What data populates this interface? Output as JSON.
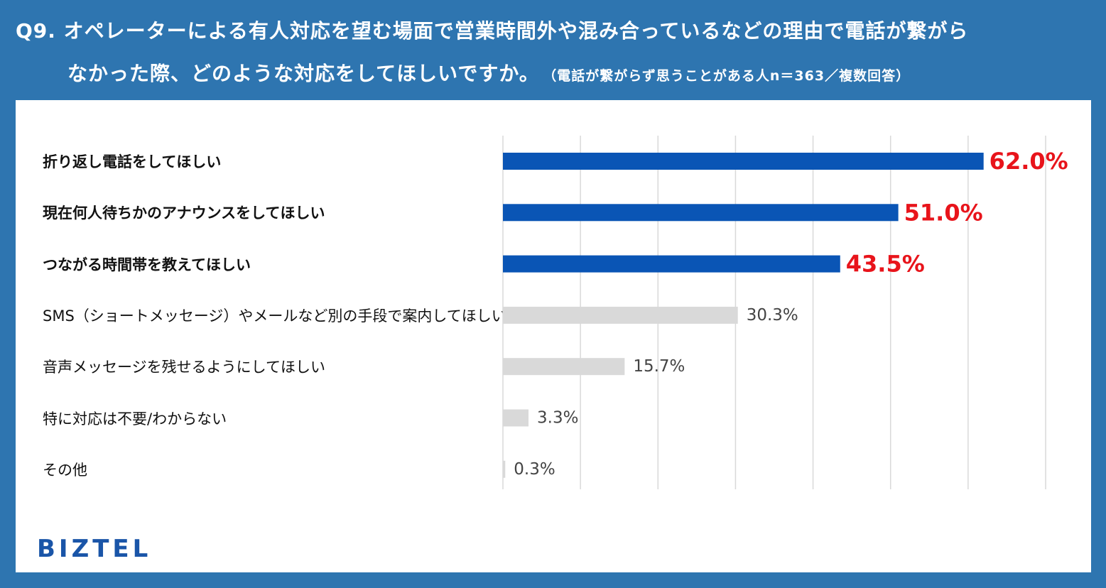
{
  "header": {
    "title_line1": "Q9. オペレーターによる有人対応を望む場面で営業時間外や混み合っているなどの理由で電話が繋がら",
    "title_line2": "なかった際、どのような対応をしてほしいですか。",
    "note": "（電話が繋がらず思うことがある人n＝363／複数回答）"
  },
  "colors": {
    "background": "#2e75b0",
    "highlight_bar": "#0a55b5",
    "normal_bar": "#d9d9d9",
    "highlight_label": "#e8141b",
    "normal_label": "#444444",
    "grid": "#d9d9d9"
  },
  "logo": {
    "text": "BIZTEL"
  },
  "chart_data": {
    "type": "bar",
    "orientation": "horizontal",
    "categories": [
      "折り返し電話をしてほしい",
      "現在何人待ちかのアナウンスをしてほしい",
      "つながる時間帯を教えてほしい",
      "SMS（ショートメッセージ）やメールなど別の手段で案内してほしい",
      "音声メッセージを残せるようにしてほしい",
      "特に対応は不要/わからない",
      "その他"
    ],
    "values": [
      62.0,
      51.0,
      43.5,
      30.3,
      15.7,
      3.3,
      0.3
    ],
    "value_labels": [
      "62.0%",
      "51.0%",
      "43.5%",
      "30.3%",
      "15.7%",
      "3.3%",
      "0.3%"
    ],
    "highlighted": [
      true,
      true,
      true,
      false,
      false,
      false,
      false
    ],
    "xlim": [
      0,
      70
    ],
    "grid_interval": 10,
    "grid": true,
    "legend": false
  }
}
